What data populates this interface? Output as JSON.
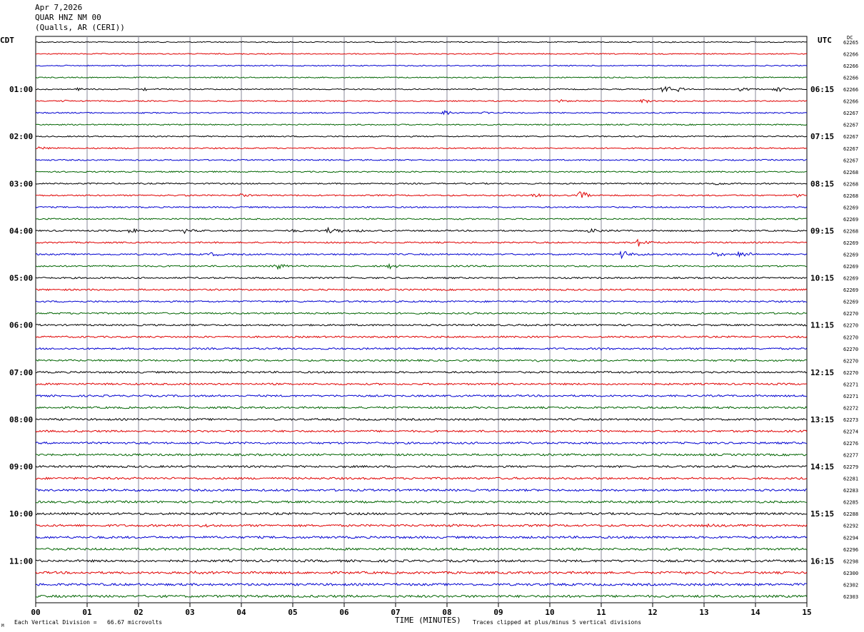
{
  "header": {
    "date": "Apr 7,2026",
    "station": "QUAR HNZ NM 00",
    "location": "(Qualls, AR (CERI))"
  },
  "tz_left": "CDT",
  "tz_right": "UTC",
  "dc_label": "DC",
  "left_hour_labels": [
    "01:00",
    "02:00",
    "03:00",
    "04:00",
    "05:00",
    "06:00",
    "07:00",
    "08:00",
    "09:00",
    "10:00",
    "11:00"
  ],
  "right_hour_labels": [
    "06:15",
    "07:15",
    "08:15",
    "09:15",
    "10:15",
    "11:15",
    "12:15",
    "13:15",
    "14:15",
    "15:15",
    "16:15"
  ],
  "dc_values": [
    "62265",
    "62266",
    "62266",
    "62266",
    "62266",
    "62266",
    "62267",
    "62267",
    "62267",
    "62267",
    "62267",
    "62268",
    "62268",
    "62268",
    "62269",
    "62269",
    "62268",
    "62269",
    "62269",
    "62269",
    "62269",
    "62269",
    "62269",
    "62270",
    "62270",
    "62270",
    "62270",
    "62270",
    "62270",
    "62271",
    "62271",
    "62272",
    "62273",
    "62274",
    "62276",
    "62277",
    "62279",
    "62281",
    "62283",
    "62285",
    "62288",
    "62292",
    "62294",
    "62296",
    "62298",
    "62300",
    "62302",
    "62303"
  ],
  "footer": {
    "scale": "Each Vertical Division =   66.67 microvolts",
    "xlabel": "TIME (MINUTES)",
    "clip_note": "Traces clipped at plus/minus 5 vertical divisions",
    "corner_mark": "M"
  },
  "colors": {
    "cycle": [
      "#000000",
      "#e00000",
      "#0000d0",
      "#006400"
    ],
    "grid": "#8a8a9a"
  },
  "chart_data": {
    "type": "line",
    "title": "QUAR HNZ NM 00",
    "xlabel": "TIME (MINUTES)",
    "ylabel": "",
    "x_ticks": [
      "00",
      "01",
      "02",
      "03",
      "04",
      "05",
      "06",
      "07",
      "08",
      "09",
      "10",
      "11",
      "12",
      "13",
      "14",
      "15"
    ],
    "xlim": [
      0,
      15
    ],
    "trace_count": 48,
    "trace_interval_minutes": 15,
    "grid": true,
    "events": [
      {
        "trace": 4,
        "minute": 12.2,
        "amp": 6
      },
      {
        "trace": 4,
        "minute": 12.5,
        "amp": 4
      },
      {
        "trace": 4,
        "minute": 13.7,
        "amp": 4
      },
      {
        "trace": 4,
        "minute": 14.4,
        "amp": 4
      },
      {
        "trace": 4,
        "minute": 0.8,
        "amp": 2
      },
      {
        "trace": 4,
        "minute": 2.1,
        "amp": 2
      },
      {
        "trace": 5,
        "minute": 0.5,
        "amp": 2
      },
      {
        "trace": 5,
        "minute": 10.2,
        "amp": 2
      },
      {
        "trace": 5,
        "minute": 11.8,
        "amp": 3
      },
      {
        "trace": 5,
        "minute": 12.4,
        "amp": 2
      },
      {
        "trace": 6,
        "minute": 7.9,
        "amp": 4
      },
      {
        "trace": 6,
        "minute": 8.7,
        "amp": 2
      },
      {
        "trace": 9,
        "minute": 0.1,
        "amp": 2
      },
      {
        "trace": 12,
        "minute": 13.2,
        "amp": 4
      },
      {
        "trace": 13,
        "minute": 2.4,
        "amp": 3
      },
      {
        "trace": 13,
        "minute": 4.0,
        "amp": 3
      },
      {
        "trace": 13,
        "minute": 9.7,
        "amp": 3
      },
      {
        "trace": 13,
        "minute": 10.6,
        "amp": 6
      },
      {
        "trace": 13,
        "minute": 14.8,
        "amp": 3
      },
      {
        "trace": 16,
        "minute": 1.8,
        "amp": 4
      },
      {
        "trace": 16,
        "minute": 2.9,
        "amp": 3
      },
      {
        "trace": 16,
        "minute": 5.0,
        "amp": 3
      },
      {
        "trace": 16,
        "minute": 5.7,
        "amp": 6
      },
      {
        "trace": 16,
        "minute": 6.2,
        "amp": 3
      },
      {
        "trace": 16,
        "minute": 10.8,
        "amp": 5
      },
      {
        "trace": 17,
        "minute": 11.7,
        "amp": 6
      },
      {
        "trace": 18,
        "minute": 3.4,
        "amp": 3
      },
      {
        "trace": 18,
        "minute": 11.4,
        "amp": 7
      },
      {
        "trace": 18,
        "minute": 13.2,
        "amp": 4
      },
      {
        "trace": 18,
        "minute": 13.7,
        "amp": 5
      },
      {
        "trace": 19,
        "minute": 4.7,
        "amp": 4
      },
      {
        "trace": 19,
        "minute": 6.9,
        "amp": 4
      },
      {
        "trace": 26,
        "minute": 11.0,
        "amp": 2
      },
      {
        "trace": 27,
        "minute": 9.7,
        "amp": 2
      },
      {
        "trace": 41,
        "minute": 3.2,
        "amp": 3
      },
      {
        "trace": 41,
        "minute": 8.0,
        "amp": 3
      },
      {
        "trace": 41,
        "minute": 13.1,
        "amp": 3
      },
      {
        "trace": 45,
        "minute": 3.0,
        "amp": 2
      },
      {
        "trace": 45,
        "minute": 12.5,
        "amp": 2
      }
    ]
  }
}
